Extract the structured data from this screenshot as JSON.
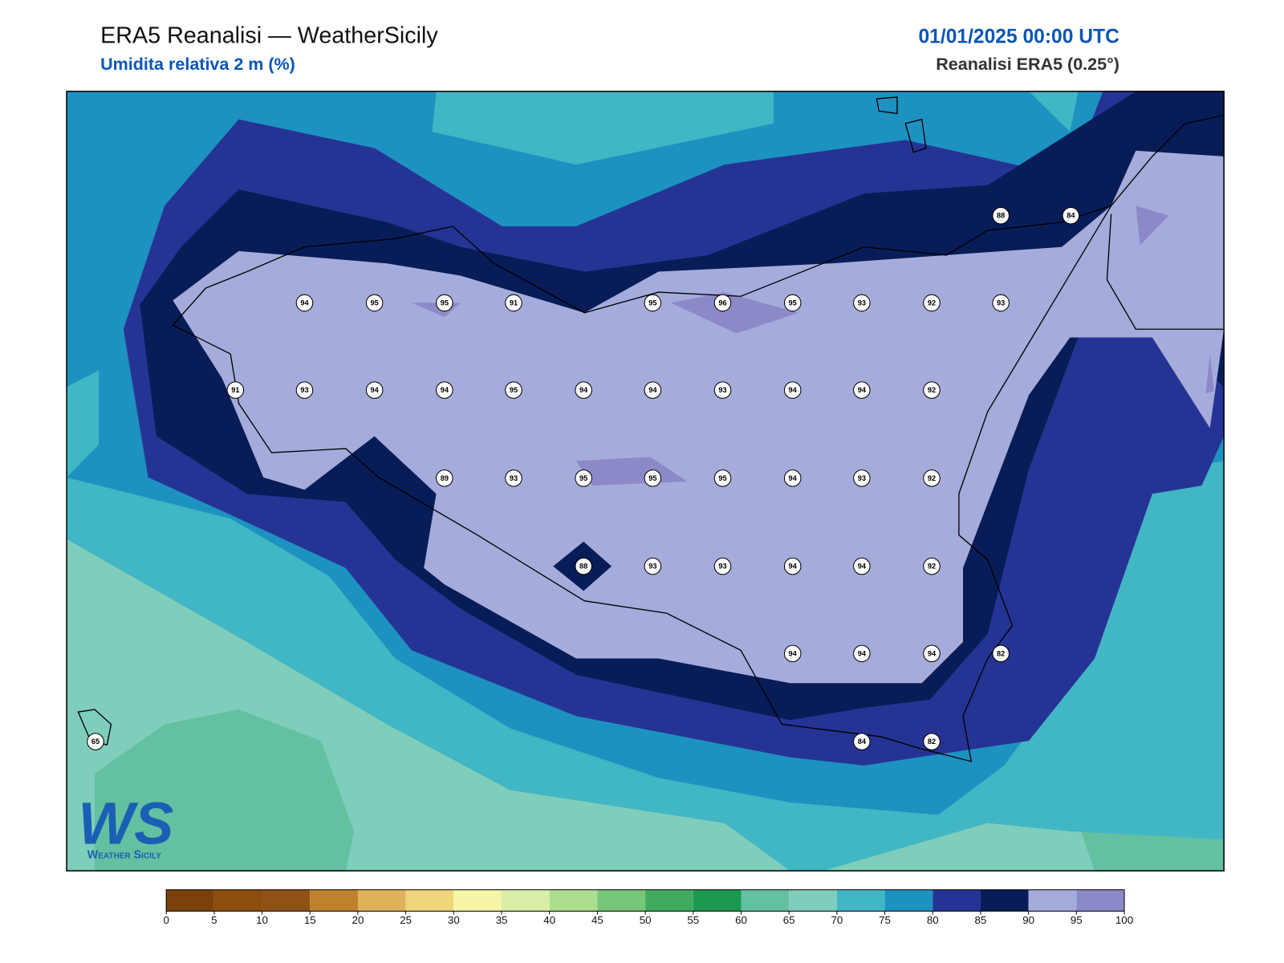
{
  "header": {
    "title": "ERA5 Reanalisi — WeatherSicily",
    "subtitle": "Umidita relativa 2 m (%)",
    "date": "01/01/2025 00:00 UTC",
    "source": "Reanalisi ERA5 (0.25°)"
  },
  "stations": [
    88,
    84,
    94,
    95,
    95,
    91,
    95,
    96,
    95,
    93,
    92,
    93,
    91,
    93,
    94,
    94,
    95,
    94,
    94,
    93,
    94,
    94,
    92,
    89,
    93,
    95,
    95,
    95,
    94,
    93,
    92,
    88,
    93,
    93,
    94,
    94,
    92,
    94,
    94,
    94,
    82,
    84,
    82,
    65
  ],
  "colorbar": {
    "ticks": [
      0,
      5,
      10,
      15,
      20,
      25,
      30,
      35,
      40,
      45,
      50,
      55,
      60,
      65,
      70,
      75,
      80,
      85,
      90,
      95,
      100
    ],
    "colors": [
      "#7a420a",
      "#8c4d0f",
      "#8f5214",
      "#bf812d",
      "#dfb15a",
      "#f0d57a",
      "#f6f5a8",
      "#d9eea6",
      "#addd8e",
      "#78c679",
      "#41ab5d",
      "#1a9850",
      "#63c0a0",
      "#7fcdbb",
      "#41b6c4",
      "#1d91c0",
      "#253494",
      "#081d58",
      "#a5acdb",
      "#8c89c8"
    ]
  },
  "logo": {
    "mark": "WS",
    "text": "Weather Sicily"
  }
}
